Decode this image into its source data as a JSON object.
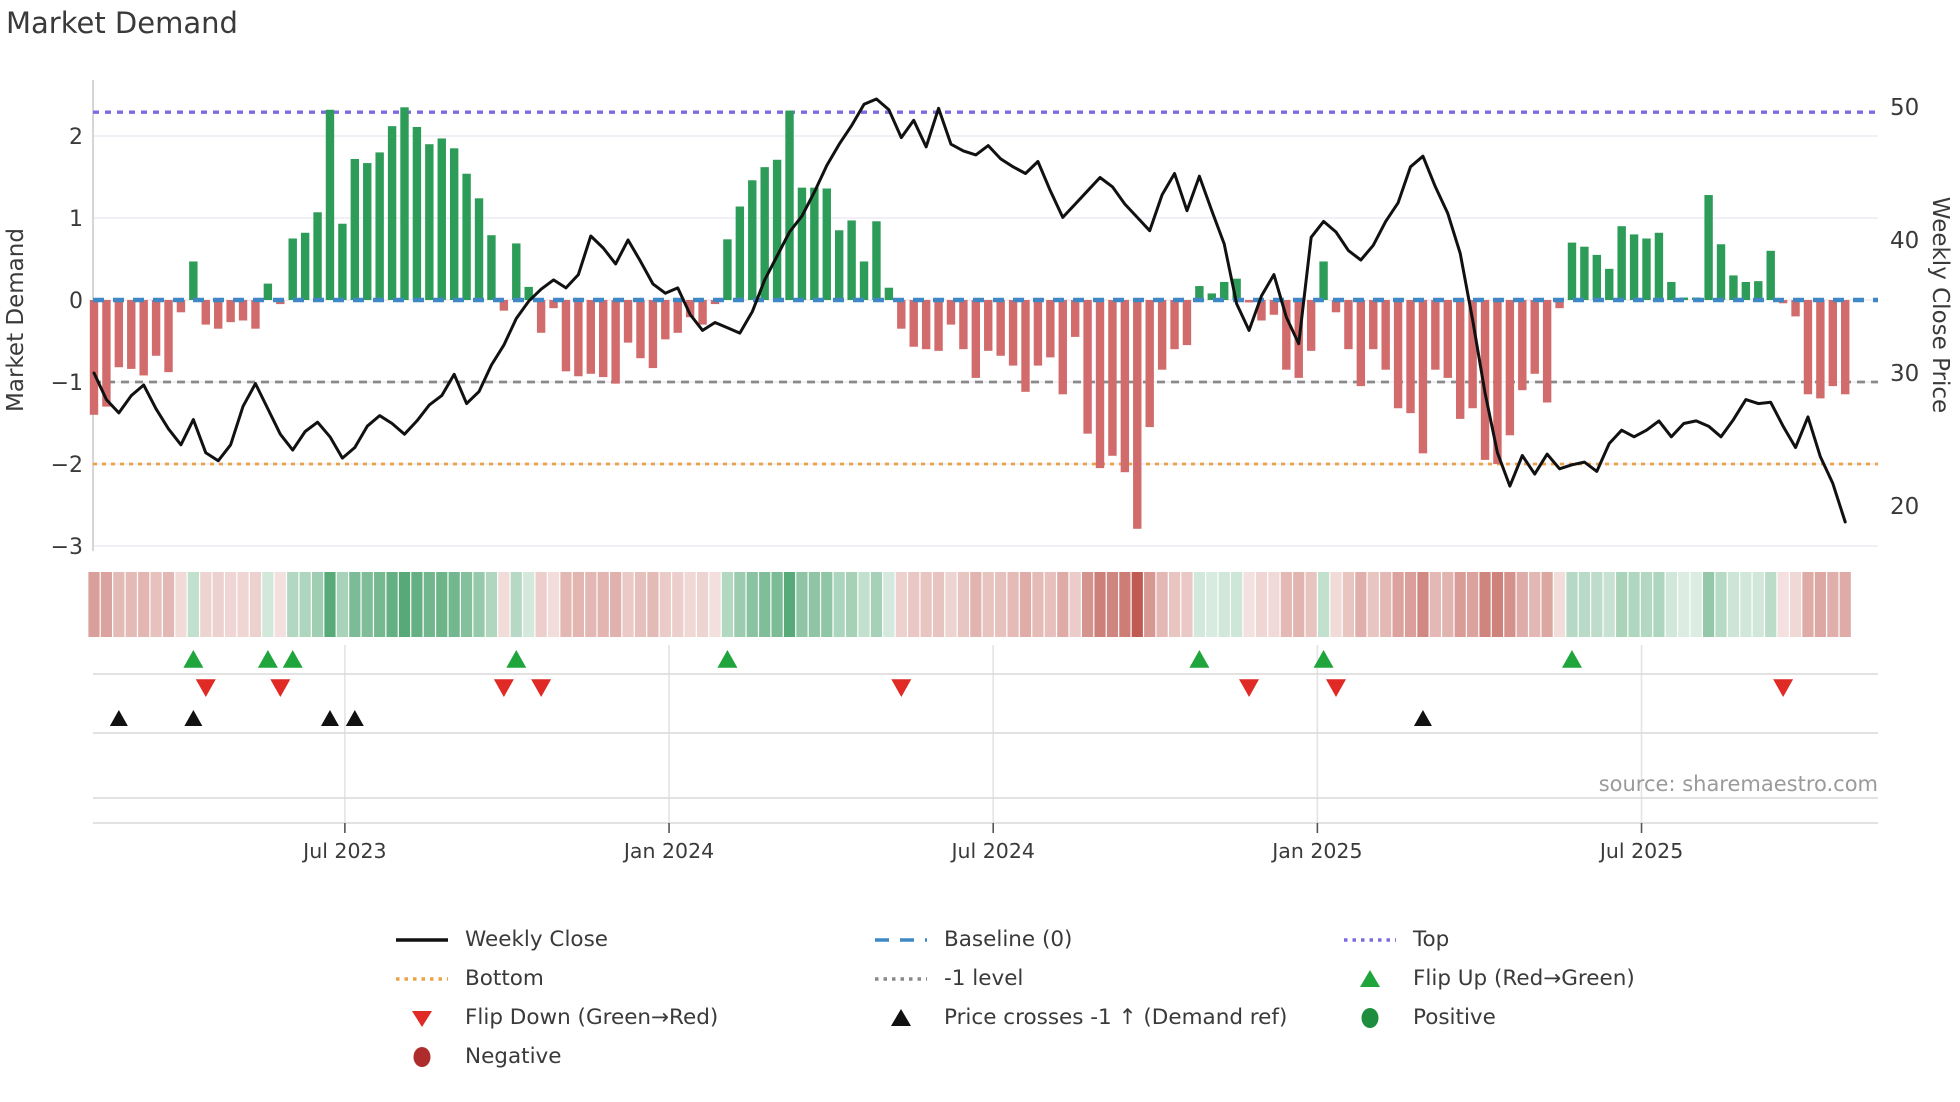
{
  "title": "Market Demand",
  "source": "source: sharemaestro.com",
  "axes": {
    "left_label": "Market Demand",
    "right_label": "Weekly Close Price",
    "left_ticks": [
      {
        "label": "2",
        "value": 2
      },
      {
        "label": "1",
        "value": 1
      },
      {
        "label": "0",
        "value": 0
      },
      {
        "label": "−1",
        "value": -1
      },
      {
        "label": "−2",
        "value": -2
      },
      {
        "label": "−3",
        "value": -3
      }
    ],
    "right_ticks": [
      {
        "label": "50",
        "value": 50
      },
      {
        "label": "40",
        "value": 40
      },
      {
        "label": "30",
        "value": 30
      },
      {
        "label": "20",
        "value": 20
      }
    ],
    "x_ticks": [
      {
        "label": "Jul 2023",
        "week": 20.2
      },
      {
        "label": "Jan 2024",
        "week": 46.3
      },
      {
        "label": "Jul 2024",
        "week": 72.4
      },
      {
        "label": "Jan 2025",
        "week": 98.5
      },
      {
        "label": "Jul 2025",
        "week": 124.6
      }
    ]
  },
  "colors": {
    "bar_positive": "#2e9c59",
    "bar_negative": "#d26b6b",
    "price_line": "#111111",
    "baseline": "#3f88c5",
    "top_level": "#7b6be1",
    "bottom_level": "#eca348",
    "minus1_level": "#8a8a8a",
    "flip_up": "#1fa53c",
    "flip_down": "#df2a25",
    "positive_dot": "#1e8e3e",
    "negative_dot": "#ae2c2c",
    "price_cross": "#111111",
    "grid": "#ebebf3",
    "panel_line": "#d9d9d9",
    "heat_green_base": [
      27,
      138,
      72
    ],
    "heat_red_base": [
      180,
      62,
      52
    ]
  },
  "chart_data": {
    "type": "bar",
    "subtype": "weekly demand bars + price line (dual axis) + heatmap strip + event markers",
    "title": "Market Demand",
    "xlabel": "",
    "ylabel_left": "Market Demand",
    "ylabel_right": "Weekly Close Price",
    "demand_ylim": [
      -3.05,
      2.68
    ],
    "price_ylim": [
      16.4,
      52.0
    ],
    "levels": {
      "top": 2.29,
      "baseline": 0,
      "minus1": -1,
      "bottom": -2
    },
    "x_unit": "week index (weekly bars, Feb 2023 - Nov 2025)",
    "weekly_demand": [
      -1.4,
      -1.3,
      -0.82,
      -0.84,
      -0.92,
      -0.68,
      -0.88,
      -0.15,
      0.47,
      -0.3,
      -0.35,
      -0.27,
      -0.25,
      -0.35,
      0.2,
      -0.05,
      0.75,
      0.82,
      1.07,
      2.32,
      0.93,
      1.72,
      1.67,
      1.8,
      2.12,
      2.35,
      2.11,
      1.9,
      1.97,
      1.85,
      1.54,
      1.24,
      0.79,
      -0.13,
      0.69,
      0.16,
      -0.4,
      -0.1,
      -0.87,
      -0.93,
      -0.9,
      -0.94,
      -1.02,
      -0.52,
      -0.71,
      -0.83,
      -0.48,
      -0.4,
      -0.21,
      -0.3,
      -0.05,
      0.74,
      1.14,
      1.46,
      1.62,
      1.71,
      2.31,
      1.37,
      1.37,
      1.36,
      0.85,
      0.97,
      0.47,
      0.96,
      0.15,
      -0.35,
      -0.57,
      -0.6,
      -0.62,
      -0.3,
      -0.6,
      -0.95,
      -0.62,
      -0.68,
      -0.8,
      -1.12,
      -0.8,
      -0.7,
      -1.15,
      -0.45,
      -1.63,
      -2.05,
      -1.9,
      -2.1,
      -2.79,
      -1.55,
      -0.85,
      -0.6,
      -0.55,
      0.17,
      0.08,
      0.22,
      0.26,
      -0.03,
      -0.25,
      -0.18,
      -0.85,
      -0.95,
      -0.62,
      0.47,
      -0.15,
      -0.6,
      -1.05,
      -0.6,
      -0.85,
      -1.32,
      -1.38,
      -1.87,
      -0.85,
      -0.95,
      -1.45,
      -1.32,
      -1.95,
      -2.0,
      -1.65,
      -1.1,
      -0.9,
      -1.25,
      -0.1,
      0.7,
      0.65,
      0.55,
      0.38,
      0.9,
      0.8,
      0.75,
      0.82,
      0.22,
      0.03,
      0.03,
      1.28,
      0.68,
      0.3,
      0.22,
      0.23,
      0.6,
      -0.04,
      -0.2,
      -1.15,
      -1.2,
      -1.05,
      -1.15
    ],
    "weekly_close": [
      30.0,
      28.0,
      27.0,
      28.3,
      29.1,
      27.3,
      25.8,
      24.6,
      26.5,
      24.0,
      23.4,
      24.6,
      27.5,
      29.2,
      27.3,
      25.4,
      24.2,
      25.6,
      26.3,
      25.2,
      23.6,
      24.4,
      26.0,
      26.8,
      26.2,
      25.4,
      26.4,
      27.6,
      28.3,
      29.9,
      27.7,
      28.6,
      30.6,
      32.1,
      34.1,
      35.4,
      36.3,
      37.0,
      36.4,
      37.4,
      40.3,
      39.4,
      38.2,
      40.0,
      38.4,
      36.7,
      36.0,
      36.4,
      34.4,
      33.2,
      33.8,
      33.4,
      33.0,
      34.6,
      37.0,
      38.8,
      40.6,
      41.8,
      43.6,
      45.6,
      47.2,
      48.6,
      50.2,
      50.6,
      49.8,
      47.7,
      49.0,
      47.0,
      49.9,
      47.2,
      46.7,
      46.4,
      47.1,
      46.1,
      45.5,
      45.0,
      45.9,
      43.7,
      41.7,
      42.7,
      43.7,
      44.7,
      44.0,
      42.7,
      41.7,
      40.7,
      43.4,
      45.0,
      42.2,
      44.8,
      42.2,
      39.7,
      35.2,
      33.2,
      35.8,
      37.4,
      34.2,
      32.2,
      40.2,
      41.4,
      40.6,
      39.2,
      38.5,
      39.6,
      41.4,
      42.8,
      45.5,
      46.3,
      44.0,
      42.0,
      39.0,
      34.0,
      28.5,
      24.0,
      21.5,
      23.8,
      22.4,
      23.9,
      22.8,
      23.1,
      23.3,
      22.6,
      24.7,
      25.7,
      25.2,
      25.7,
      26.4,
      25.2,
      26.2,
      26.4,
      26.0,
      25.2,
      26.5,
      28.0,
      27.7,
      27.8,
      26.0,
      24.4,
      26.7,
      23.7,
      21.7,
      18.8
    ],
    "flip_up_weeks": [
      8,
      14,
      16,
      34,
      51,
      89,
      99,
      119
    ],
    "flip_down_weeks": [
      9,
      15,
      33,
      36,
      65,
      93,
      100,
      136
    ],
    "price_cross_weeks": [
      2,
      8,
      19,
      21,
      107
    ],
    "heatmap": "same weekly_demand values, red→green intensity by sign/magnitude",
    "legend_position": "bottom, 3 columns",
    "grid": "horizontal light gridlines at left-axis ticks; faint vertical gridlines in lower panels"
  },
  "legend": {
    "columns": [
      [
        {
          "label": "Weekly Close",
          "marker": "line",
          "color": "#111111"
        },
        {
          "label": "Bottom",
          "marker": "dotted",
          "color": "#eca348"
        },
        {
          "label": "Flip Down (Green→Red)",
          "marker": "tri-down",
          "color": "#df2a25"
        },
        {
          "label": "Negative",
          "marker": "circle",
          "color": "#ae2c2c"
        }
      ],
      [
        {
          "label": "Baseline (0)",
          "marker": "dashed",
          "color": "#3f88c5"
        },
        {
          "label": "-1 level",
          "marker": "dotted",
          "color": "#8a8a8a"
        },
        {
          "label": "Price crosses -1 ↑ (Demand ref)",
          "marker": "tri-up",
          "color": "#111111"
        }
      ],
      [
        {
          "label": "Top",
          "marker": "dotted",
          "color": "#7b6be1"
        },
        {
          "label": "Flip Up (Red→Green)",
          "marker": "tri-up",
          "color": "#1fa53c"
        },
        {
          "label": "Positive",
          "marker": "circle",
          "color": "#1e8e3e"
        }
      ]
    ]
  }
}
